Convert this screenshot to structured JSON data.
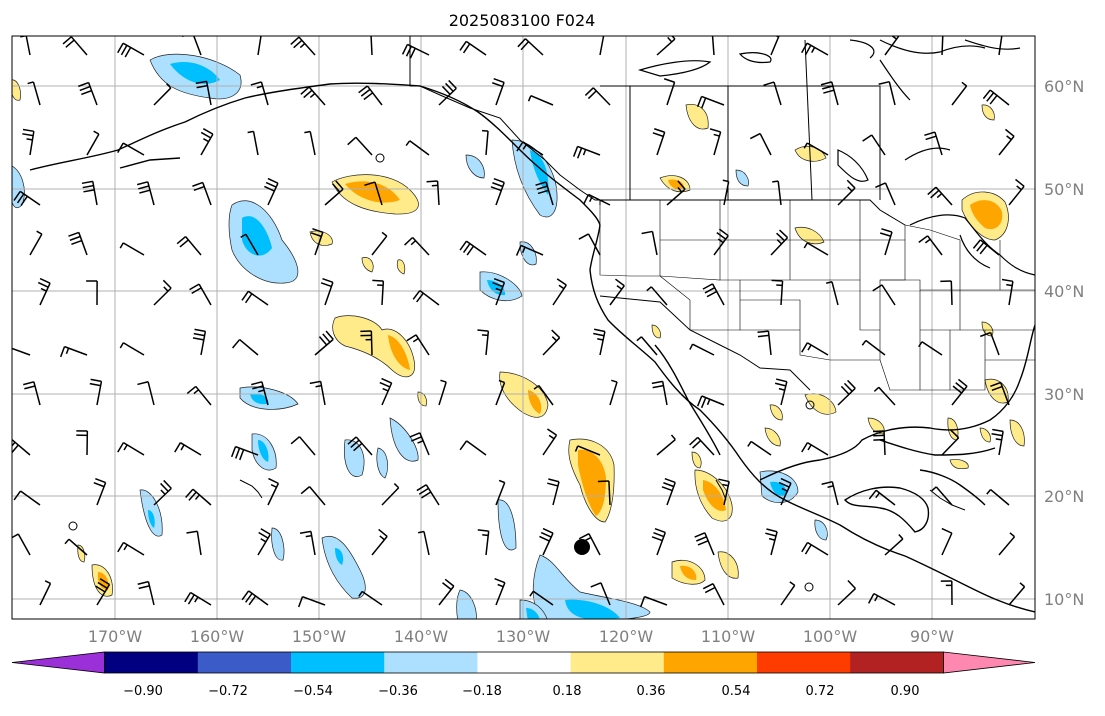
{
  "title": "2025083100 F024",
  "lon_labels": [
    "170°W",
    "160°W",
    "150°W",
    "140°W",
    "130°W",
    "120°W",
    "110°W",
    "100°W",
    "90°W"
  ],
  "lat_labels": [
    "10°N",
    "20°N",
    "30°N",
    "40°N",
    "50°N",
    "60°N"
  ],
  "colorbar": {
    "tick_labels": [
      "−0.90",
      "−0.72",
      "−0.54",
      "−0.36",
      "−0.18",
      "0.18",
      "0.36",
      "0.54",
      "0.72",
      "0.90"
    ],
    "colors": [
      "#9b30d9",
      "#000080",
      "#3a5bc8",
      "#00bfff",
      "#addfff",
      "#ffffff",
      "#ffeb8a",
      "#ffa500",
      "#ff3c00",
      "#b22222",
      "#ff88b0"
    ]
  }
}
